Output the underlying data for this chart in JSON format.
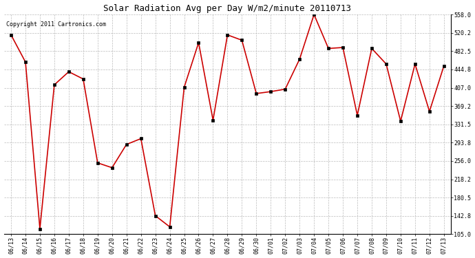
{
  "title": "Solar Radiation Avg per Day W/m2/minute 20110713",
  "copyright": "Copyright 2011 Cartronics.com",
  "dates": [
    "06/13",
    "06/14",
    "06/15",
    "06/16",
    "06/17",
    "06/18",
    "06/19",
    "06/20",
    "06/21",
    "06/22",
    "06/23",
    "06/24",
    "06/25",
    "06/26",
    "06/27",
    "06/28",
    "06/29",
    "06/30",
    "07/01",
    "07/02",
    "07/03",
    "07/04",
    "07/05",
    "07/06",
    "07/07",
    "07/08",
    "07/09",
    "07/10",
    "07/11",
    "07/12",
    "07/13"
  ],
  "values": [
    516,
    460,
    116,
    413,
    440,
    425,
    252,
    242,
    290,
    302,
    143,
    120,
    408,
    500,
    340,
    516,
    505,
    395,
    399,
    404,
    466,
    558,
    488,
    490,
    350,
    488,
    456,
    338,
    456,
    358,
    452
  ],
  "line_color": "#cc0000",
  "marker_color": "#000000",
  "bg_color": "#ffffff",
  "plot_bg_color": "#ffffff",
  "grid_color": "#bbbbbb",
  "title_fontsize": 9,
  "copyright_fontsize": 6,
  "tick_fontsize": 6,
  "ylabel_values": [
    558.0,
    520.2,
    482.5,
    444.8,
    407.0,
    369.2,
    331.5,
    293.8,
    256.0,
    218.2,
    180.5,
    142.8,
    105.0
  ],
  "ylim": [
    105.0,
    558.0
  ]
}
